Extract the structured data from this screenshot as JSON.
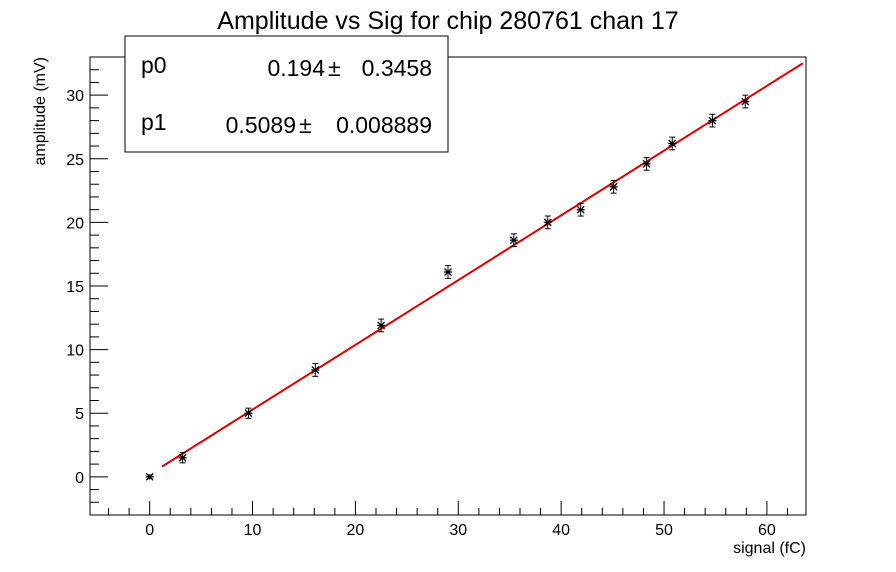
{
  "chart_data": {
    "type": "scatter",
    "title": "Amplitude vs Sig for chip 280761 chan 17",
    "xlabel": "signal (fC)",
    "ylabel": "amplitude (mV)",
    "xlim": [
      -5.8,
      63.8
    ],
    "ylim": [
      -3.0,
      33.0
    ],
    "x_ticks": [
      0,
      10,
      20,
      30,
      40,
      50,
      60
    ],
    "y_ticks": [
      0,
      5,
      10,
      15,
      20,
      25,
      30
    ],
    "grid": false,
    "points": [
      {
        "x": 0.0,
        "y": 0.0,
        "err": 0.15
      },
      {
        "x": 3.2,
        "y": 1.5,
        "err": 0.4
      },
      {
        "x": 9.6,
        "y": 5.0,
        "err": 0.4
      },
      {
        "x": 16.1,
        "y": 8.4,
        "err": 0.5
      },
      {
        "x": 22.5,
        "y": 11.9,
        "err": 0.5
      },
      {
        "x": 29.0,
        "y": 16.1,
        "err": 0.5
      },
      {
        "x": 35.4,
        "y": 18.6,
        "err": 0.5
      },
      {
        "x": 38.7,
        "y": 20.0,
        "err": 0.5
      },
      {
        "x": 41.9,
        "y": 21.0,
        "err": 0.5
      },
      {
        "x": 45.1,
        "y": 22.8,
        "err": 0.5
      },
      {
        "x": 48.3,
        "y": 24.6,
        "err": 0.5
      },
      {
        "x": 50.8,
        "y": 26.2,
        "err": 0.5
      },
      {
        "x": 54.7,
        "y": 28.0,
        "err": 0.5
      },
      {
        "x": 57.9,
        "y": 29.5,
        "err": 0.5
      }
    ],
    "fit": {
      "type": "linear",
      "p0": 0.194,
      "p1": 0.5089,
      "x_range": [
        1.2,
        63.5
      ],
      "color": "#dd0000"
    },
    "stats": [
      {
        "name": "p0",
        "value": "0.194",
        "sep": "±",
        "error": "0.3458"
      },
      {
        "name": "p1",
        "value": "0.5089",
        "sep": "±",
        "error": "0.008889"
      }
    ]
  }
}
